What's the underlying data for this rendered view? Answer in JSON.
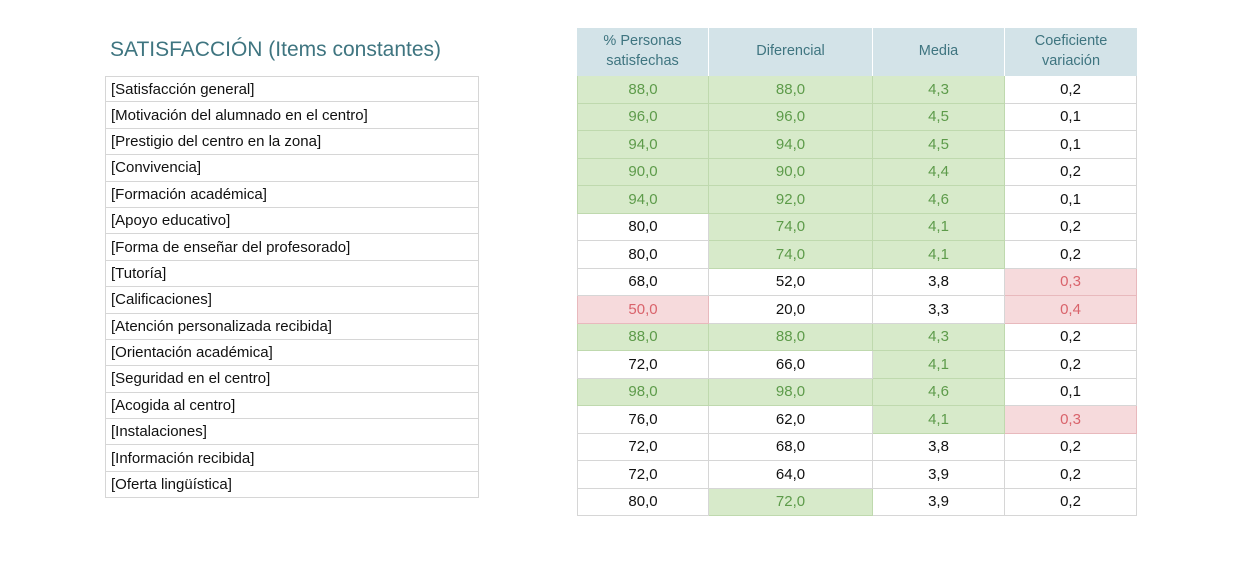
{
  "title": "SATISFACCIÓN (Items constantes)",
  "headers": [
    "% Personas satisfechas",
    "Diferencial",
    "Media",
    "Coeficiente variación"
  ],
  "colors": {
    "good_bg": "#d7eaca",
    "good_text": "#5d9b4a",
    "bad_bg": "#f6dadc",
    "bad_text": "#d9636b",
    "header_bg": "#d3e3e8",
    "header_text": "#3f7580"
  },
  "rows": [
    {
      "label": "[Satisfacción general]",
      "values": [
        "88,0",
        "88,0",
        "4,3",
        "0,2"
      ],
      "status": [
        "good",
        "good",
        "good",
        ""
      ]
    },
    {
      "label": "[Motivación del alumnado en el centro]",
      "values": [
        "96,0",
        "96,0",
        "4,5",
        "0,1"
      ],
      "status": [
        "good",
        "good",
        "good",
        ""
      ]
    },
    {
      "label": "[Prestigio del centro en la zona]",
      "values": [
        "94,0",
        "94,0",
        "4,5",
        "0,1"
      ],
      "status": [
        "good",
        "good",
        "good",
        ""
      ]
    },
    {
      "label": "[Convivencia]",
      "values": [
        "90,0",
        "90,0",
        "4,4",
        "0,2"
      ],
      "status": [
        "good",
        "good",
        "good",
        ""
      ]
    },
    {
      "label": "[Formación académica]",
      "values": [
        "94,0",
        "92,0",
        "4,6",
        "0,1"
      ],
      "status": [
        "good",
        "good",
        "good",
        ""
      ]
    },
    {
      "label": "[Apoyo educativo]",
      "values": [
        "80,0",
        "74,0",
        "4,1",
        "0,2"
      ],
      "status": [
        "",
        "good",
        "good",
        ""
      ]
    },
    {
      "label": "[Forma de enseñar del profesorado]",
      "values": [
        "80,0",
        "74,0",
        "4,1",
        "0,2"
      ],
      "status": [
        "",
        "good",
        "good",
        ""
      ]
    },
    {
      "label": "[Tutoría]",
      "values": [
        "68,0",
        "52,0",
        "3,8",
        "0,3"
      ],
      "status": [
        "",
        "",
        "",
        "bad"
      ]
    },
    {
      "label": "[Calificaciones]",
      "values": [
        "50,0",
        "20,0",
        "3,3",
        "0,4"
      ],
      "status": [
        "bad",
        "",
        "",
        "bad"
      ]
    },
    {
      "label": "[Atención personalizada recibida]",
      "values": [
        "88,0",
        "88,0",
        "4,3",
        "0,2"
      ],
      "status": [
        "good",
        "good",
        "good",
        ""
      ]
    },
    {
      "label": "[Orientación académica]",
      "values": [
        "72,0",
        "66,0",
        "4,1",
        "0,2"
      ],
      "status": [
        "",
        "",
        "good",
        ""
      ]
    },
    {
      "label": "[Seguridad en el centro]",
      "values": [
        "98,0",
        "98,0",
        "4,6",
        "0,1"
      ],
      "status": [
        "good",
        "good",
        "good",
        ""
      ]
    },
    {
      "label": "[Acogida al centro]",
      "values": [
        "76,0",
        "62,0",
        "4,1",
        "0,3"
      ],
      "status": [
        "",
        "",
        "good",
        "bad"
      ]
    },
    {
      "label": "[Instalaciones]",
      "values": [
        "72,0",
        "68,0",
        "3,8",
        "0,2"
      ],
      "status": [
        "",
        "",
        "",
        ""
      ]
    },
    {
      "label": "[Información recibida]",
      "values": [
        "72,0",
        "64,0",
        "3,9",
        "0,2"
      ],
      "status": [
        "",
        "",
        "",
        ""
      ]
    },
    {
      "label": "[Oferta lingüística]",
      "values": [
        "80,0",
        "72,0",
        "3,9",
        "0,2"
      ],
      "status": [
        "",
        "good",
        "",
        ""
      ]
    }
  ]
}
